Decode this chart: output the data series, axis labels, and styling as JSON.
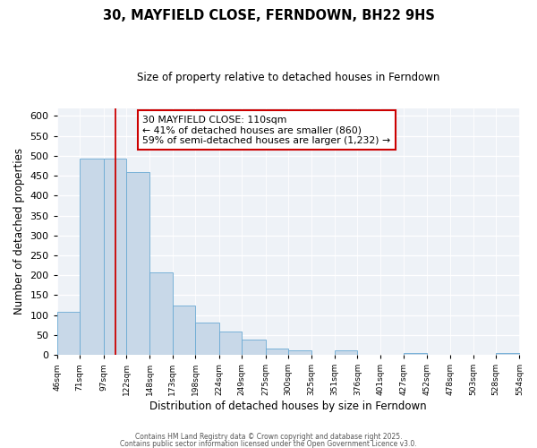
{
  "title": "30, MAYFIELD CLOSE, FERNDOWN, BH22 9HS",
  "subtitle": "Size of property relative to detached houses in Ferndown",
  "xlabel": "Distribution of detached houses by size in Ferndown",
  "ylabel": "Number of detached properties",
  "bar_color": "#c8d8e8",
  "bar_edge_color": "#6aaad4",
  "bins": [
    46,
    71,
    97,
    122,
    148,
    173,
    198,
    224,
    249,
    275,
    300,
    325,
    351,
    376,
    401,
    427,
    452,
    478,
    503,
    528,
    554
  ],
  "bin_labels": [
    "46sqm",
    "71sqm",
    "97sqm",
    "122sqm",
    "148sqm",
    "173sqm",
    "198sqm",
    "224sqm",
    "249sqm",
    "275sqm",
    "300sqm",
    "325sqm",
    "351sqm",
    "376sqm",
    "401sqm",
    "427sqm",
    "452sqm",
    "478sqm",
    "503sqm",
    "528sqm",
    "554sqm"
  ],
  "values": [
    107,
    493,
    493,
    460,
    207,
    125,
    82,
    58,
    38,
    15,
    11,
    0,
    11,
    0,
    0,
    5,
    0,
    0,
    0,
    5
  ],
  "vline_x": 110,
  "vline_color": "#cc0000",
  "annotation_text": "30 MAYFIELD CLOSE: 110sqm\n← 41% of detached houses are smaller (860)\n59% of semi-detached houses are larger (1,232) →",
  "annotation_box_color": "#ffffff",
  "annotation_box_edge": "#cc0000",
  "ylim": [
    0,
    620
  ],
  "yticks": [
    0,
    50,
    100,
    150,
    200,
    250,
    300,
    350,
    400,
    450,
    500,
    550,
    600
  ],
  "background_color": "#eef2f7",
  "footer1": "Contains HM Land Registry data © Crown copyright and database right 2025.",
  "footer2": "Contains public sector information licensed under the Open Government Licence v3.0."
}
